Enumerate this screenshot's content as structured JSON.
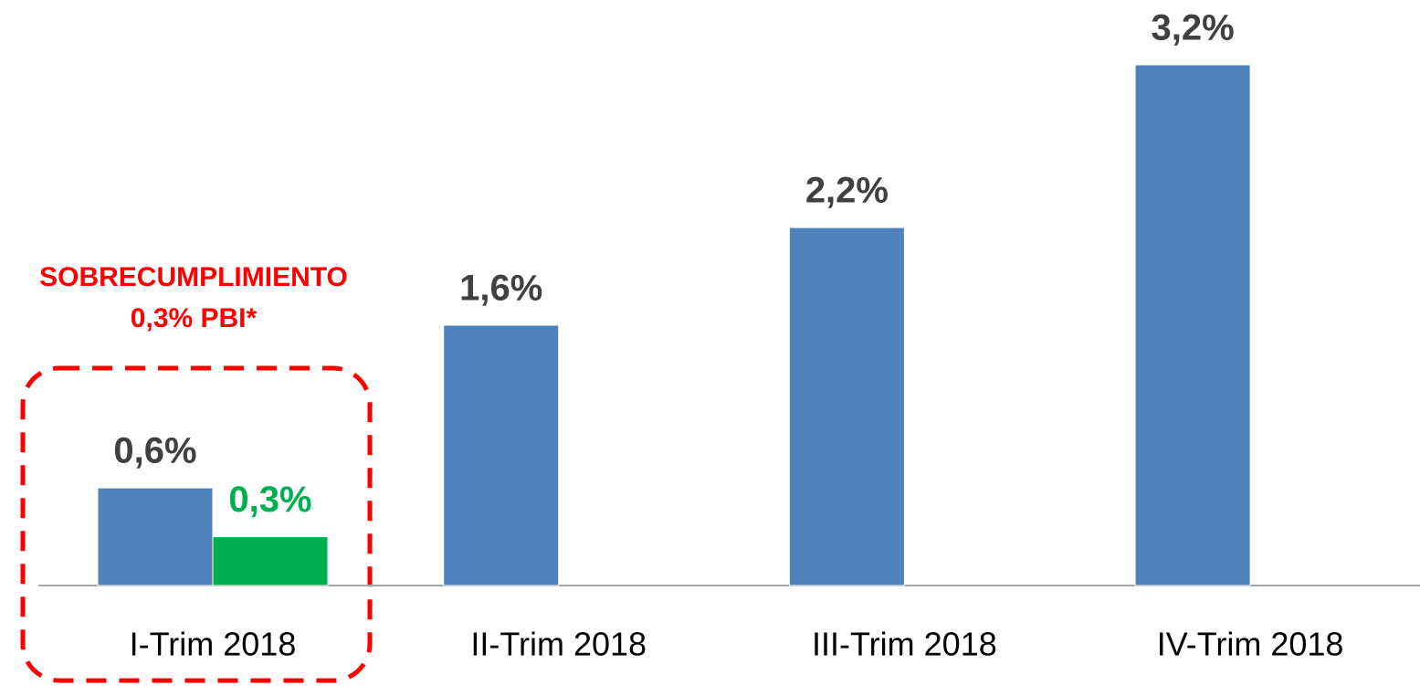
{
  "chart_data": {
    "type": "bar",
    "categories": [
      "I-Trim 2018",
      "II-Trim 2018",
      "III-Trim 2018",
      "IV-Trim 2018"
    ],
    "series": [
      {
        "color": "#4f81bd",
        "label_color": "#404040",
        "values": [
          0.6,
          1.6,
          2.2,
          3.2
        ],
        "value_labels": [
          "0,6%",
          "1,6%",
          "2,2%",
          "3,2%"
        ]
      },
      {
        "color": "#00b050",
        "label_color": "#00b050",
        "values": [
          0.3,
          null,
          null,
          null
        ],
        "value_labels": [
          "0,3%",
          null,
          null,
          null
        ]
      }
    ],
    "annotations": [
      "SOBRECUMPLIMIENTO",
      "0,3% PBI*"
    ]
  }
}
